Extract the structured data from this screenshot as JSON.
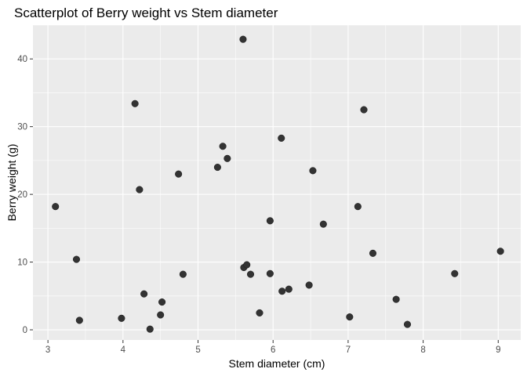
{
  "chart_data": {
    "type": "scatter",
    "title": "Scatterplot of Berry weight vs Stem diameter",
    "xlabel": "Stem diameter (cm)",
    "ylabel": "Berry weight (g)",
    "xlim": [
      2.8,
      9.3
    ],
    "ylim": [
      -1.5,
      45
    ],
    "x_ticks": [
      3,
      4,
      5,
      6,
      7,
      8,
      9
    ],
    "y_ticks": [
      0,
      10,
      20,
      30,
      40
    ],
    "grid": true,
    "points": [
      {
        "x": 3.1,
        "y": 18.2
      },
      {
        "x": 3.38,
        "y": 10.4
      },
      {
        "x": 3.42,
        "y": 1.4
      },
      {
        "x": 3.98,
        "y": 1.7
      },
      {
        "x": 4.16,
        "y": 33.4
      },
      {
        "x": 4.22,
        "y": 20.7
      },
      {
        "x": 4.28,
        "y": 5.3
      },
      {
        "x": 4.36,
        "y": 0.1
      },
      {
        "x": 4.5,
        "y": 2.2
      },
      {
        "x": 4.52,
        "y": 4.1
      },
      {
        "x": 4.74,
        "y": 23.0
      },
      {
        "x": 4.8,
        "y": 8.2
      },
      {
        "x": 5.26,
        "y": 24.0
      },
      {
        "x": 5.33,
        "y": 27.1
      },
      {
        "x": 5.39,
        "y": 25.3
      },
      {
        "x": 5.6,
        "y": 42.9
      },
      {
        "x": 5.61,
        "y": 9.2
      },
      {
        "x": 5.65,
        "y": 9.6
      },
      {
        "x": 5.7,
        "y": 8.2
      },
      {
        "x": 5.82,
        "y": 2.5
      },
      {
        "x": 5.96,
        "y": 16.1
      },
      {
        "x": 5.96,
        "y": 8.3
      },
      {
        "x": 6.11,
        "y": 28.3
      },
      {
        "x": 6.12,
        "y": 5.7
      },
      {
        "x": 6.21,
        "y": 6.0
      },
      {
        "x": 6.48,
        "y": 6.6
      },
      {
        "x": 6.53,
        "y": 23.5
      },
      {
        "x": 6.67,
        "y": 15.6
      },
      {
        "x": 7.02,
        "y": 1.9
      },
      {
        "x": 7.13,
        "y": 18.2
      },
      {
        "x": 7.21,
        "y": 32.5
      },
      {
        "x": 7.33,
        "y": 11.3
      },
      {
        "x": 7.64,
        "y": 4.5
      },
      {
        "x": 7.79,
        "y": 0.8
      },
      {
        "x": 8.42,
        "y": 8.3
      },
      {
        "x": 9.03,
        "y": 11.6
      }
    ]
  }
}
